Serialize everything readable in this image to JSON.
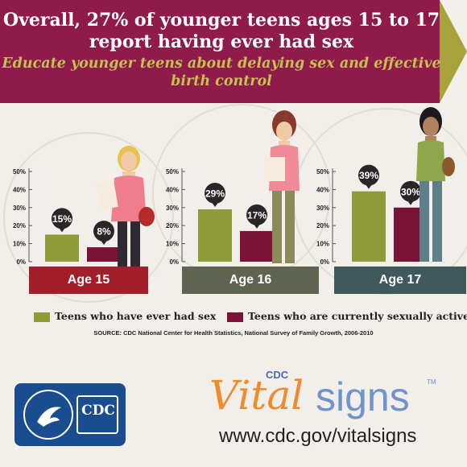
{
  "header": {
    "headline": "Overall, 27% of younger teens ages 15 to 17 report having ever had sex",
    "subline": "Educate younger teens about delaying sex and effective birth control"
  },
  "chart_data": [
    {
      "type": "bar",
      "title": "Age 15",
      "categories": [
        "Teens who have ever had sex",
        "Teens who are currently sexually active"
      ],
      "values": [
        15,
        8
      ],
      "labels": [
        "15%",
        "8%"
      ],
      "ylim": [
        0,
        50
      ],
      "yticks": [
        "0%",
        "10%",
        "20%",
        "30%",
        "40%",
        "50%"
      ]
    },
    {
      "type": "bar",
      "title": "Age 16",
      "categories": [
        "Teens who have ever had sex",
        "Teens who are currently sexually active"
      ],
      "values": [
        29,
        17
      ],
      "labels": [
        "29%",
        "17%"
      ],
      "ylim": [
        0,
        50
      ],
      "yticks": [
        "0%",
        "10%",
        "20%",
        "30%",
        "40%",
        "50%"
      ]
    },
    {
      "type": "bar",
      "title": "Age 17",
      "categories": [
        "Teens who have ever had sex",
        "Teens who are currently sexually active"
      ],
      "values": [
        39,
        30
      ],
      "labels": [
        "39%",
        "30%"
      ],
      "ylim": [
        0,
        50
      ],
      "yticks": [
        "0%",
        "10%",
        "20%",
        "30%",
        "40%",
        "50%"
      ]
    }
  ],
  "colors": {
    "ever": "#8f9a3a",
    "current": "#7a1437",
    "age15": "#a21f2a",
    "age16": "#5e6450",
    "age17": "#3f5a5c",
    "banner": "#8e1b49"
  },
  "legend": {
    "ever": "Teens who have ever had sex",
    "current": "Teens who are currently sexually active"
  },
  "source": "SOURCE: CDC National Center for Health Statistics, National Survey of Family Growth, 2006-2010",
  "footer": {
    "cdc_small": "CDC",
    "vital": "Vital",
    "signs": "signs",
    "tm": "TM",
    "url": "www.cdc.gov/vitalsigns",
    "cdc_logo": "CDC"
  }
}
